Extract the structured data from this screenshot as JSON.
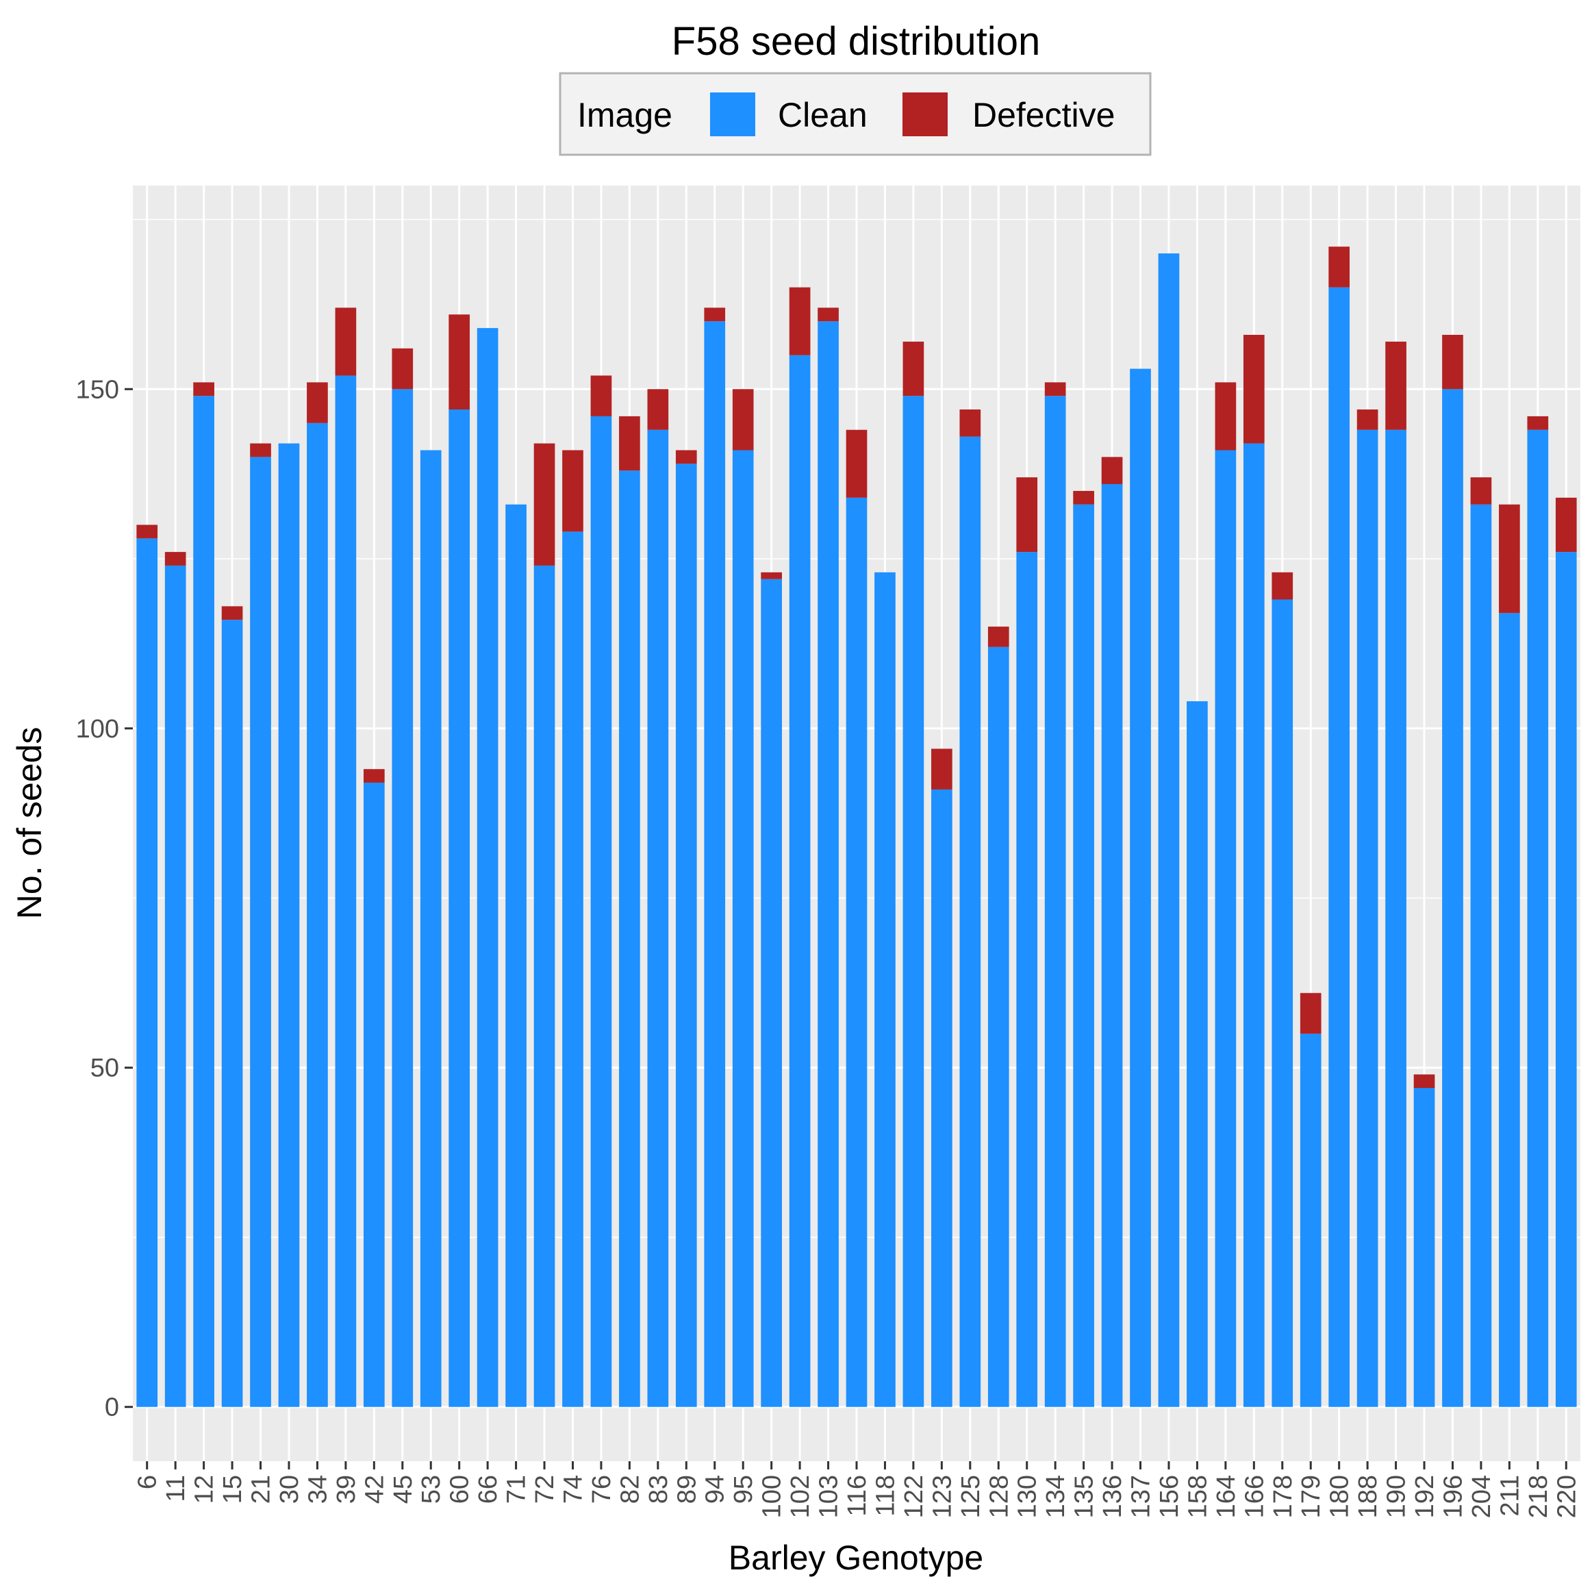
{
  "chart_data": {
    "type": "bar",
    "stacked": true,
    "title": "F58 seed distribution",
    "xlabel": "Barley Genotype",
    "ylabel": "No. of seeds",
    "ylim": [
      -8,
      180
    ],
    "yticks": [
      0,
      50,
      100,
      150
    ],
    "grid": true,
    "legend_position": "top",
    "legend_title": "Image",
    "categories": [
      "6",
      "11",
      "12",
      "15",
      "21",
      "30",
      "34",
      "39",
      "42",
      "45",
      "53",
      "60",
      "66",
      "71",
      "72",
      "74",
      "76",
      "82",
      "83",
      "89",
      "94",
      "95",
      "100",
      "102",
      "103",
      "116",
      "118",
      "122",
      "123",
      "125",
      "128",
      "130",
      "134",
      "135",
      "136",
      "137",
      "156",
      "158",
      "164",
      "166",
      "178",
      "179",
      "180",
      "188",
      "190",
      "192",
      "196",
      "204",
      "211",
      "218",
      "220"
    ],
    "series": [
      {
        "name": "Clean",
        "color": "#1E90FF",
        "values": [
          128,
          124,
          149,
          116,
          140,
          142,
          145,
          152,
          92,
          150,
          141,
          147,
          159,
          133,
          124,
          129,
          146,
          138,
          144,
          139,
          160,
          141,
          122,
          155,
          160,
          134,
          123,
          149,
          91,
          143,
          112,
          126,
          149,
          133,
          136,
          153,
          170,
          104,
          141,
          142,
          119,
          55,
          165,
          144,
          144,
          47,
          150,
          133,
          117,
          144,
          126
        ]
      },
      {
        "name": "Defective",
        "color": "#B22222",
        "values": [
          2,
          2,
          2,
          2,
          2,
          0,
          6,
          10,
          2,
          6,
          0,
          14,
          0,
          0,
          18,
          12,
          6,
          8,
          6,
          2,
          2,
          9,
          1,
          10,
          2,
          10,
          0,
          8,
          6,
          4,
          3,
          11,
          2,
          2,
          4,
          0,
          0,
          0,
          10,
          16,
          4,
          6,
          6,
          3,
          13,
          2,
          8,
          4,
          16,
          2,
          8
        ]
      }
    ]
  }
}
